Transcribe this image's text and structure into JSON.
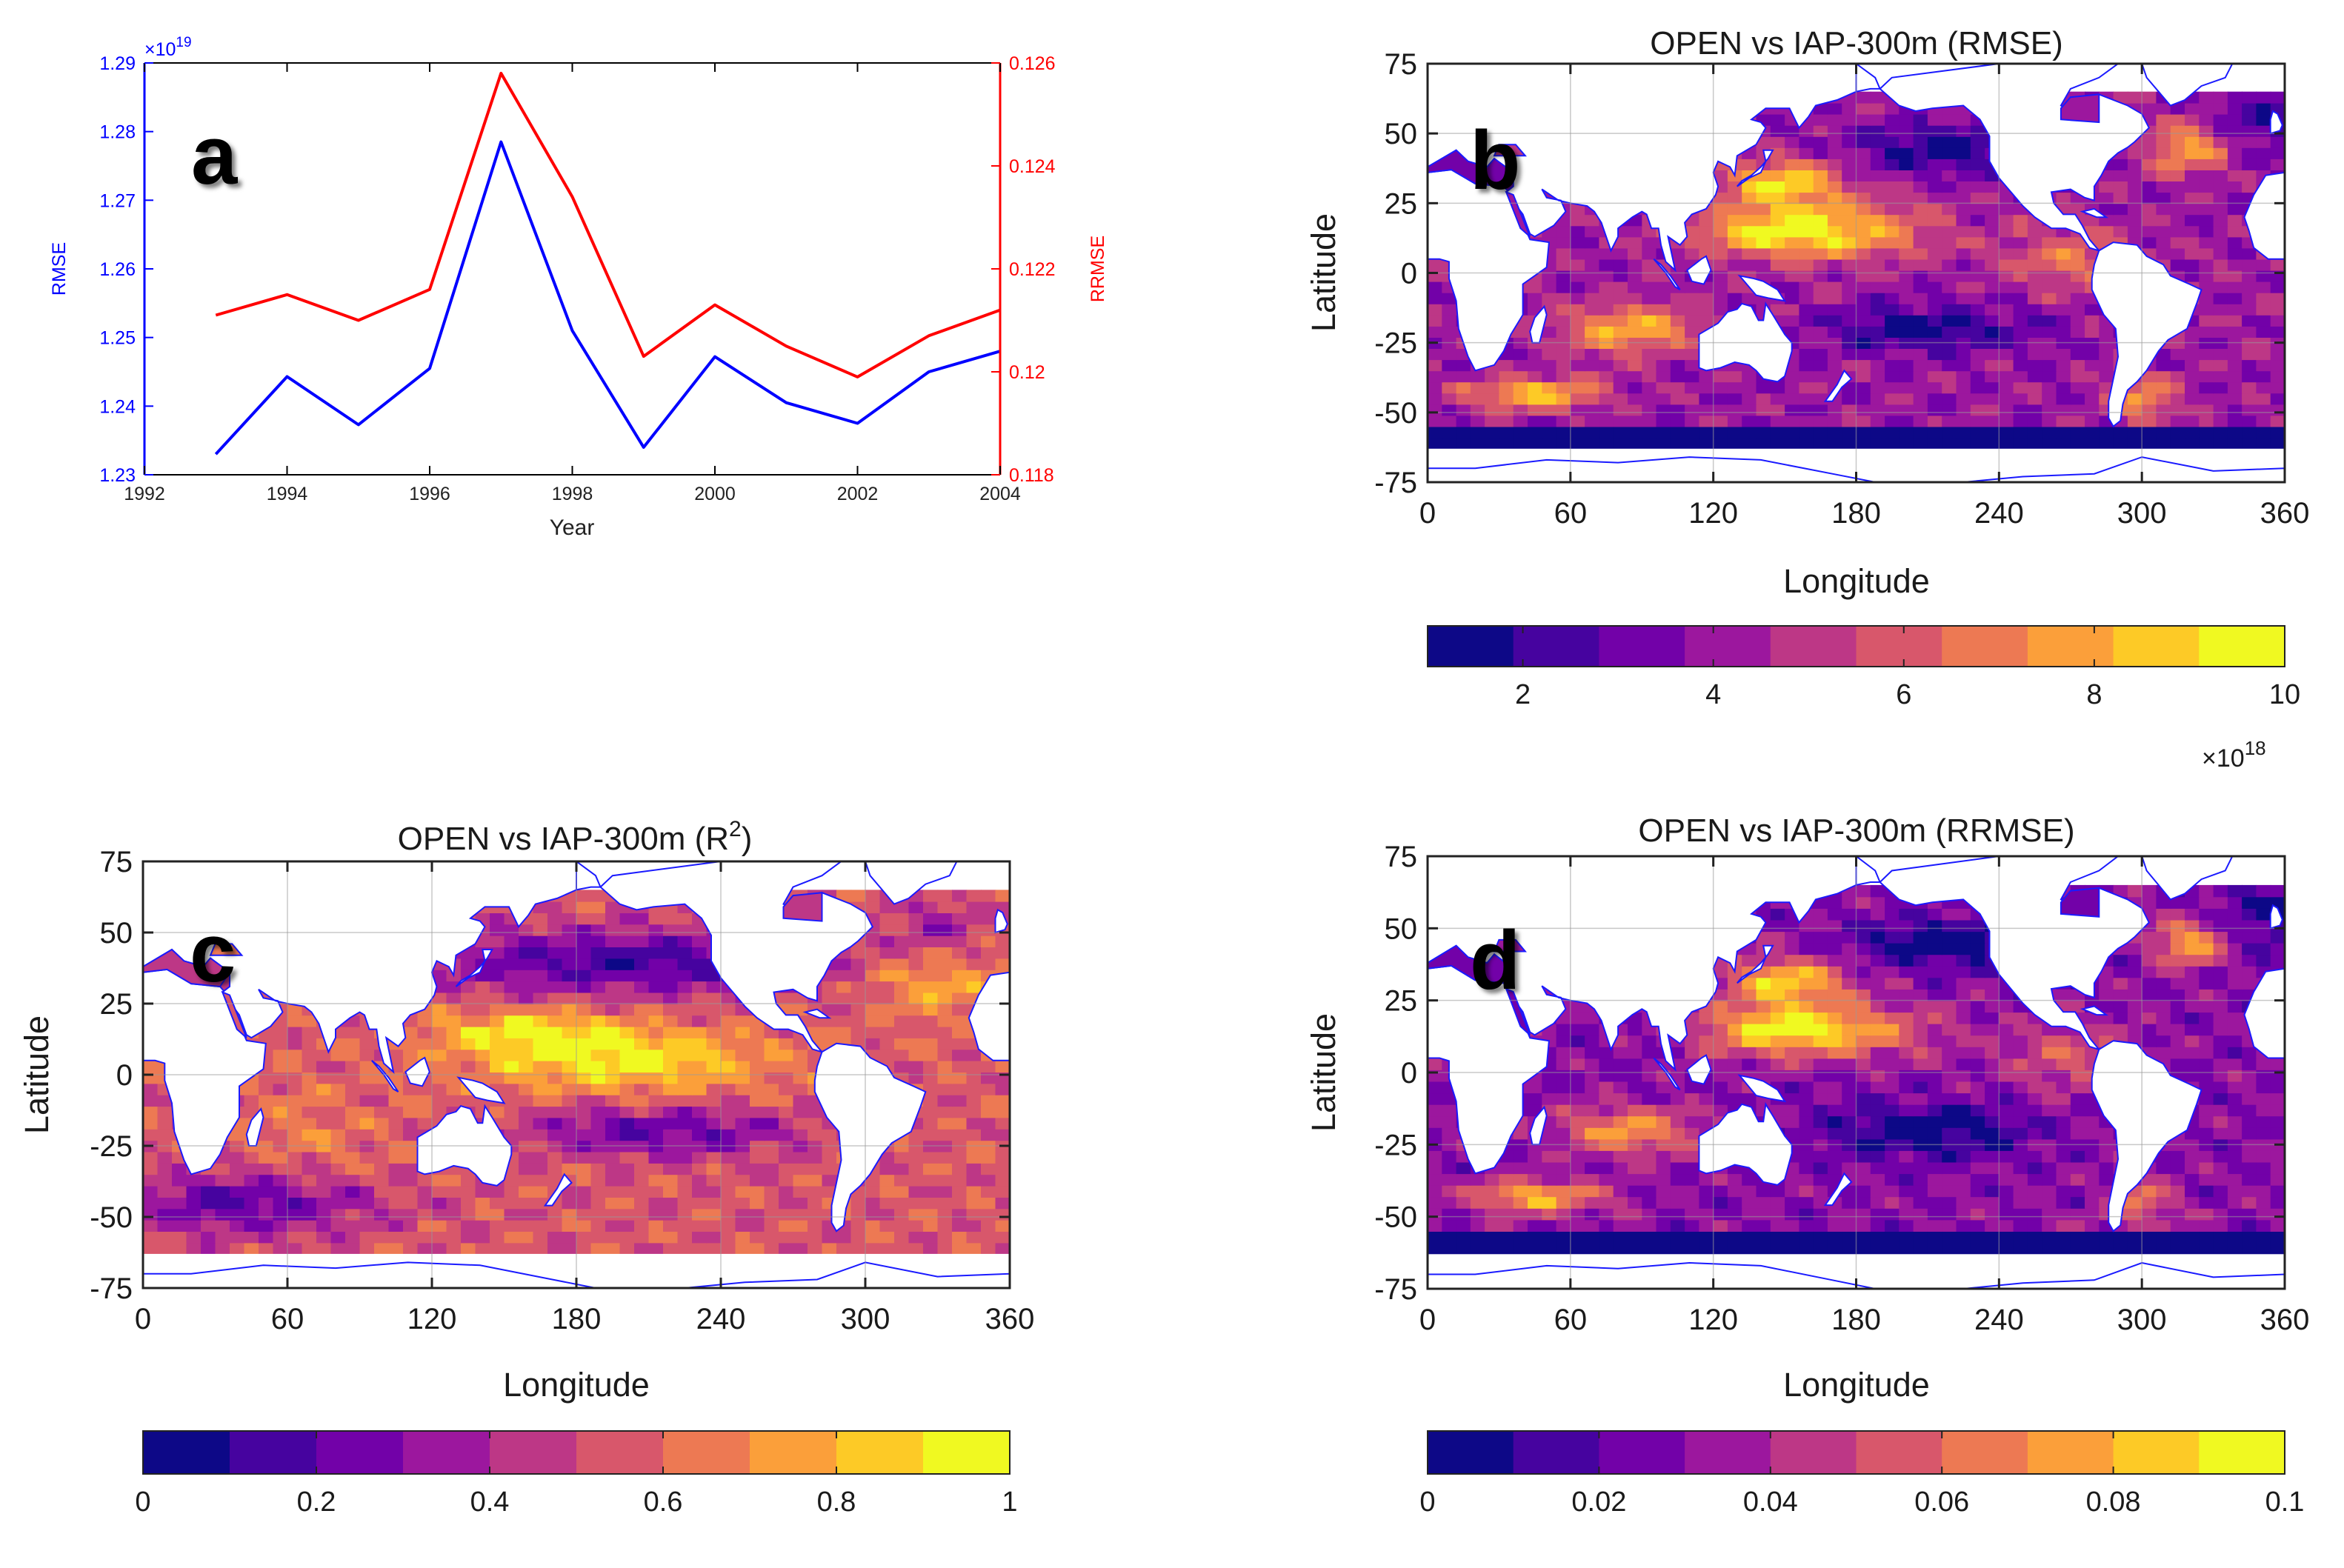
{
  "chart_data": [
    {
      "panel": "a",
      "type": "line",
      "title": "",
      "xlabel": "Year",
      "ylabel": "RMSE",
      "y2label": "RRMSE",
      "xlim": [
        1992,
        2004
      ],
      "ylim": [
        1.23,
        1.29
      ],
      "y2lim": [
        0.118,
        0.126
      ],
      "y_exponent_label": "×10",
      "y_exponent_value": "19",
      "x_ticks": [
        "1992",
        "1994",
        "1996",
        "1998",
        "2000",
        "2002",
        "2004"
      ],
      "y_ticks": [
        "1.23",
        "1.24",
        "1.25",
        "1.26",
        "1.27",
        "1.28",
        "1.29"
      ],
      "y2_ticks": [
        "0.118",
        "0.12",
        "0.122",
        "0.124",
        "0.126"
      ],
      "x": [
        1993,
        1994,
        1995,
        1996,
        1997,
        1998,
        1999,
        2000,
        2001,
        2002,
        2003,
        2004
      ],
      "series": [
        {
          "axis": "left",
          "color": "#0000ff",
          "values": [
            1.233,
            1.2443,
            1.2373,
            1.2455,
            1.2785,
            1.251,
            1.234,
            1.2472,
            1.2405,
            1.2375,
            1.245,
            1.248
          ]
        },
        {
          "axis": "right",
          "color": "#ff0000",
          "values": [
            0.1211,
            0.1215,
            0.121,
            0.1216,
            0.1258,
            0.1234,
            0.1203,
            0.1213,
            0.1205,
            0.1199,
            0.1207,
            0.1212
          ]
        }
      ],
      "grid": false,
      "annotation": "a"
    },
    {
      "panel": "b",
      "type": "heatmap",
      "title": "OPEN vs IAP-300m (RMSE)",
      "xlabel": "Longitude",
      "ylabel": "Latitude",
      "xlim": [
        0,
        360
      ],
      "ylim": [
        -75,
        75
      ],
      "x_ticks": [
        "0",
        "60",
        "120",
        "180",
        "240",
        "300",
        "360"
      ],
      "y_ticks": [
        "75",
        "50",
        "25",
        "0",
        "-25",
        "-50",
        "-75"
      ],
      "colorbar_ticks": [
        "2",
        "4",
        "6",
        "8",
        "10"
      ],
      "colorbar_ticks_values": [
        2,
        4,
        6,
        8,
        10
      ],
      "colorbar_range": [
        1,
        10
      ],
      "colorbar_exponent_label": "×10",
      "colorbar_exponent_value": "18",
      "colormap": "plasma",
      "grid": true,
      "annotation": "b"
    },
    {
      "panel": "c",
      "type": "heatmap",
      "title_main": "OPEN vs IAP-300m (R",
      "title_sup": "2",
      "title_end": ")",
      "xlabel": "Longitude",
      "ylabel": "Latitude",
      "xlim": [
        0,
        360
      ],
      "ylim": [
        -75,
        75
      ],
      "x_ticks": [
        "0",
        "60",
        "120",
        "180",
        "240",
        "300",
        "360"
      ],
      "y_ticks": [
        "75",
        "50",
        "25",
        "0",
        "-25",
        "-50",
        "-75"
      ],
      "colorbar_ticks": [
        "0",
        "0.2",
        "0.4",
        "0.6",
        "0.8",
        "1"
      ],
      "colorbar_ticks_values": [
        0,
        0.2,
        0.4,
        0.6,
        0.8,
        1
      ],
      "colorbar_range": [
        0,
        1
      ],
      "colormap": "plasma",
      "grid": true,
      "annotation": "c"
    },
    {
      "panel": "d",
      "type": "heatmap",
      "title": "OPEN vs IAP-300m (RRMSE)",
      "xlabel": "Longitude",
      "ylabel": "Latitude",
      "xlim": [
        0,
        360
      ],
      "ylim": [
        -75,
        75
      ],
      "x_ticks": [
        "0",
        "60",
        "120",
        "180",
        "240",
        "300",
        "360"
      ],
      "y_ticks": [
        "75",
        "50",
        "25",
        "0",
        "-25",
        "-50",
        "-75"
      ],
      "colorbar_ticks": [
        "0",
        "0.02",
        "0.04",
        "0.06",
        "0.08",
        "0.1"
      ],
      "colorbar_ticks_values": [
        0,
        0.02,
        0.04,
        0.06,
        0.08,
        0.1
      ],
      "colorbar_range": [
        0,
        0.1
      ],
      "colormap": "plasma",
      "grid": true,
      "annotation": "d"
    }
  ],
  "colors": {
    "rmse_axis": "#0000ff",
    "rrmse_axis": "#ff0000",
    "coastline": "#1a1aff",
    "colormap_steps": [
      "#0d0887",
      "#46039f",
      "#7201a8",
      "#9c179e",
      "#bd3786",
      "#d8576b",
      "#ed7953",
      "#fb9f3a",
      "#fdca26",
      "#f0f921"
    ]
  }
}
